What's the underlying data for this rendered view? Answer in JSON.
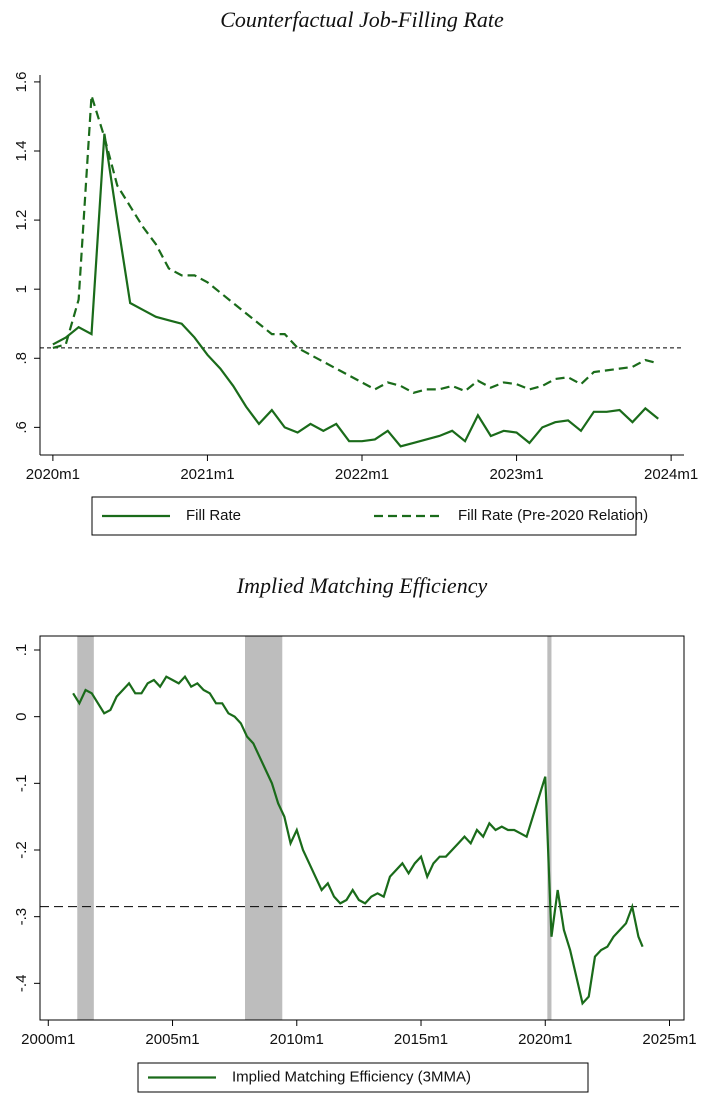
{
  "chart_data": [
    {
      "type": "line",
      "title": "Counterfactual Job-Filling Rate",
      "x": [
        "2020m1",
        "2020m2",
        "2020m3",
        "2020m4",
        "2020m5",
        "2020m6",
        "2020m7",
        "2020m8",
        "2020m9",
        "2020m10",
        "2020m11",
        "2020m12",
        "2021m1",
        "2021m2",
        "2021m3",
        "2021m4",
        "2021m5",
        "2021m6",
        "2021m7",
        "2021m8",
        "2021m9",
        "2021m10",
        "2021m11",
        "2021m12",
        "2022m1",
        "2022m2",
        "2022m3",
        "2022m4",
        "2022m5",
        "2022m6",
        "2022m7",
        "2022m8",
        "2022m9",
        "2022m10",
        "2022m11",
        "2022m12",
        "2023m1",
        "2023m2",
        "2023m3",
        "2023m4",
        "2023m5",
        "2023m6",
        "2023m7",
        "2023m8",
        "2023m9",
        "2023m10",
        "2023m11",
        "2023m12"
      ],
      "series": [
        {
          "name": "Fill Rate",
          "color": "#1a6b1a",
          "dash": false,
          "values": [
            0.84,
            0.86,
            0.89,
            0.87,
            1.45,
            1.2,
            0.96,
            0.94,
            0.92,
            0.91,
            0.9,
            0.86,
            0.81,
            0.77,
            0.72,
            0.66,
            0.61,
            0.65,
            0.6,
            0.585,
            0.61,
            0.59,
            0.61,
            0.56,
            0.56,
            0.565,
            0.59,
            0.545,
            0.555,
            0.565,
            0.575,
            0.59,
            0.56,
            0.635,
            0.575,
            0.59,
            0.585,
            0.555,
            0.6,
            0.615,
            0.62,
            0.59,
            0.645,
            0.645,
            0.65,
            0.615,
            0.655,
            0.625
          ]
        },
        {
          "name": "Fill Rate (Pre-2020 Relation)",
          "color": "#1a6b1a",
          "dash": true,
          "values": [
            0.83,
            0.84,
            0.97,
            1.56,
            1.44,
            1.3,
            1.24,
            1.18,
            1.13,
            1.06,
            1.04,
            1.04,
            1.02,
            0.99,
            0.96,
            0.93,
            0.9,
            0.87,
            0.87,
            0.83,
            0.81,
            0.79,
            0.77,
            0.75,
            0.73,
            0.71,
            0.73,
            0.72,
            0.7,
            0.71,
            0.71,
            0.72,
            0.705,
            0.735,
            0.715,
            0.73,
            0.725,
            0.71,
            0.72,
            0.74,
            0.745,
            0.725,
            0.76,
            0.765,
            0.77,
            0.775,
            0.795,
            0.785
          ]
        }
      ],
      "xlim": [
        "2019m12",
        "2024m2"
      ],
      "xticks": [
        "2020m1",
        "2021m1",
        "2022m1",
        "2023m1",
        "2024m1"
      ],
      "ylim": [
        0.52,
        1.62
      ],
      "yticks": [
        {
          "value": 0.6,
          "label": ".6"
        },
        {
          "value": 0.8,
          "label": ".8"
        },
        1,
        1.2,
        1.4,
        1.6
      ],
      "reference_line": 0.83,
      "frame": false,
      "legend": "bottom"
    },
    {
      "type": "line",
      "title": "Implied Matching Efficiency",
      "x": [
        "2001m1",
        "2001m4",
        "2001m7",
        "2001m10",
        "2002m1",
        "2002m4",
        "2002m7",
        "2002m10",
        "2003m1",
        "2003m4",
        "2003m7",
        "2003m10",
        "2004m1",
        "2004m4",
        "2004m7",
        "2004m10",
        "2005m1",
        "2005m4",
        "2005m7",
        "2005m10",
        "2006m1",
        "2006m4",
        "2006m7",
        "2006m10",
        "2007m1",
        "2007m4",
        "2007m7",
        "2007m10",
        "2008m1",
        "2008m4",
        "2008m7",
        "2008m10",
        "2009m1",
        "2009m4",
        "2009m7",
        "2009m10",
        "2010m1",
        "2010m4",
        "2010m7",
        "2010m10",
        "2011m1",
        "2011m4",
        "2011m7",
        "2011m10",
        "2012m1",
        "2012m4",
        "2012m7",
        "2012m10",
        "2013m1",
        "2013m4",
        "2013m7",
        "2013m10",
        "2014m1",
        "2014m4",
        "2014m7",
        "2014m10",
        "2015m1",
        "2015m4",
        "2015m7",
        "2015m10",
        "2016m1",
        "2016m4",
        "2016m7",
        "2016m10",
        "2017m1",
        "2017m4",
        "2017m7",
        "2017m10",
        "2018m1",
        "2018m4",
        "2018m7",
        "2018m10",
        "2019m1",
        "2019m4",
        "2019m7",
        "2019m10",
        "2020m1",
        "2020m4",
        "2020m7",
        "2020m10",
        "2021m1",
        "2021m4",
        "2021m7",
        "2021m10",
        "2022m1",
        "2022m4",
        "2022m7",
        "2022m10",
        "2023m1",
        "2023m4",
        "2023m7",
        "2023m10",
        "2023m12"
      ],
      "series": [
        {
          "name": "Implied Matching Efficiency (3MMA)",
          "color": "#1a6b1a",
          "dash": false,
          "values": [
            0.035,
            0.02,
            0.04,
            0.035,
            0.02,
            0.005,
            0.01,
            0.03,
            0.04,
            0.05,
            0.035,
            0.035,
            0.05,
            0.055,
            0.045,
            0.06,
            0.055,
            0.05,
            0.06,
            0.045,
            0.05,
            0.04,
            0.035,
            0.02,
            0.02,
            0.005,
            0,
            -0.01,
            -0.03,
            -0.04,
            -0.06,
            -0.08,
            -0.1,
            -0.13,
            -0.15,
            -0.19,
            -0.17,
            -0.2,
            -0.22,
            -0.24,
            -0.26,
            -0.25,
            -0.27,
            -0.28,
            -0.275,
            -0.26,
            -0.275,
            -0.28,
            -0.27,
            -0.265,
            -0.27,
            -0.24,
            -0.23,
            -0.22,
            -0.235,
            -0.22,
            -0.21,
            -0.24,
            -0.22,
            -0.21,
            -0.21,
            -0.2,
            -0.19,
            -0.18,
            -0.19,
            -0.17,
            -0.18,
            -0.16,
            -0.17,
            -0.165,
            -0.17,
            -0.17,
            -0.175,
            -0.18,
            -0.15,
            -0.12,
            -0.09,
            -0.33,
            -0.26,
            -0.32,
            -0.35,
            -0.39,
            -0.43,
            -0.42,
            -0.36,
            -0.35,
            -0.345,
            -0.33,
            -0.32,
            -0.31,
            -0.285,
            -0.33,
            -0.345
          ]
        }
      ],
      "xlim": [
        "1999m9",
        "2025m8"
      ],
      "xticks": [
        "2000m1",
        "2005m1",
        "2010m1",
        "2015m1",
        "2020m1",
        "2025m1"
      ],
      "ylim": [
        -0.455,
        0.121
      ],
      "yticks": [
        {
          "value": 0.1,
          "label": ".1"
        },
        0,
        {
          "value": -0.1,
          "label": "-.1"
        },
        {
          "value": -0.2,
          "label": "-.2"
        },
        {
          "value": -0.3,
          "label": "-.3"
        },
        {
          "value": -0.4,
          "label": "-.4"
        }
      ],
      "reference_line": -0.285,
      "shaded_periods": [
        [
          "2001m3",
          "2001m11"
        ],
        [
          "2007m12",
          "2009m6"
        ],
        [
          "2020m2",
          "2020m4"
        ]
      ],
      "frame": true,
      "legend": "bottom"
    }
  ]
}
